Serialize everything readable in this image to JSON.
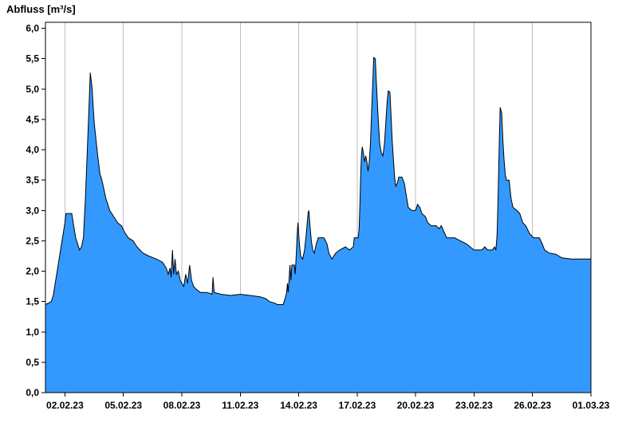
{
  "chart_data": {
    "type": "area",
    "title": "Abfluss [m³/s]",
    "ylabel": "Abfluss [m³/s]",
    "xlabel": "",
    "legend_position": "none",
    "grid": "vertical-only",
    "x_axis": {
      "tick_labels": [
        "02.02.23",
        "05.02.23",
        "08.02.23",
        "11.02.23",
        "14.02.23",
        "17.02.23",
        "20.02.23",
        "23.02.23",
        "26.02.23",
        "01.03.23"
      ],
      "tick_days": [
        1,
        4,
        7,
        10,
        13,
        16,
        19,
        22,
        25,
        28
      ],
      "domain_days": [
        0,
        28
      ],
      "domain_note": "day 0 = 01.02.23, day 28 = 01.03.23"
    },
    "y_axis": {
      "tick_labels": [
        "0,0",
        "0,5",
        "1,0",
        "1,5",
        "2,0",
        "2,5",
        "3,0",
        "3,5",
        "4,0",
        "4,5",
        "5,0",
        "5,5",
        "6,0"
      ],
      "tick_values": [
        0,
        0.5,
        1,
        1.5,
        2,
        2.5,
        3,
        3.5,
        4,
        4.5,
        5,
        5.5,
        6
      ],
      "ylim": [
        0,
        6.1
      ]
    },
    "style": {
      "fill_color": "#3399FF",
      "line_color": "#000000",
      "grid_color": "#BEBEBE",
      "frame_color": "#000000",
      "background": "#FFFFFF",
      "text_color": "#000000"
    },
    "series": [
      {
        "name": "Abfluss",
        "unit": "m³/s",
        "points": [
          [
            0.0,
            1.45
          ],
          [
            0.3,
            1.5
          ],
          [
            0.4,
            1.6
          ],
          [
            0.5,
            1.8
          ],
          [
            0.6,
            2.0
          ],
          [
            0.7,
            2.2
          ],
          [
            0.8,
            2.4
          ],
          [
            0.9,
            2.6
          ],
          [
            1.0,
            2.8
          ],
          [
            1.05,
            2.95
          ],
          [
            1.35,
            2.95
          ],
          [
            1.45,
            2.75
          ],
          [
            1.55,
            2.55
          ],
          [
            1.65,
            2.45
          ],
          [
            1.75,
            2.35
          ],
          [
            1.85,
            2.4
          ],
          [
            1.95,
            2.55
          ],
          [
            2.0,
            2.9
          ],
          [
            2.05,
            3.2
          ],
          [
            2.1,
            3.6
          ],
          [
            2.15,
            4.0
          ],
          [
            2.2,
            4.4
          ],
          [
            2.25,
            4.85
          ],
          [
            2.3,
            5.27
          ],
          [
            2.4,
            5.0
          ],
          [
            2.45,
            4.7
          ],
          [
            2.5,
            4.45
          ],
          [
            2.6,
            4.15
          ],
          [
            2.7,
            3.85
          ],
          [
            2.8,
            3.6
          ],
          [
            2.9,
            3.5
          ],
          [
            3.0,
            3.35
          ],
          [
            3.1,
            3.2
          ],
          [
            3.2,
            3.1
          ],
          [
            3.3,
            3.0
          ],
          [
            3.5,
            2.9
          ],
          [
            3.7,
            2.8
          ],
          [
            3.9,
            2.75
          ],
          [
            4.05,
            2.65
          ],
          [
            4.25,
            2.55
          ],
          [
            4.5,
            2.5
          ],
          [
            4.7,
            2.4
          ],
          [
            5.0,
            2.3
          ],
          [
            5.3,
            2.25
          ],
          [
            5.7,
            2.2
          ],
          [
            6.0,
            2.15
          ],
          [
            6.2,
            2.05
          ],
          [
            6.3,
            1.95
          ],
          [
            6.4,
            2.05
          ],
          [
            6.45,
            1.9
          ],
          [
            6.52,
            2.35
          ],
          [
            6.58,
            1.95
          ],
          [
            6.65,
            2.2
          ],
          [
            6.72,
            1.95
          ],
          [
            6.82,
            2.0
          ],
          [
            6.92,
            1.85
          ],
          [
            7.0,
            1.8
          ],
          [
            7.1,
            1.75
          ],
          [
            7.2,
            1.95
          ],
          [
            7.3,
            1.8
          ],
          [
            7.4,
            2.1
          ],
          [
            7.5,
            1.85
          ],
          [
            7.6,
            1.75
          ],
          [
            7.75,
            1.7
          ],
          [
            7.95,
            1.65
          ],
          [
            8.3,
            1.65
          ],
          [
            8.55,
            1.62
          ],
          [
            8.6,
            1.9
          ],
          [
            8.66,
            1.65
          ],
          [
            9.0,
            1.62
          ],
          [
            9.5,
            1.6
          ],
          [
            10.0,
            1.62
          ],
          [
            10.5,
            1.6
          ],
          [
            11.0,
            1.58
          ],
          [
            11.3,
            1.55
          ],
          [
            11.5,
            1.5
          ],
          [
            11.8,
            1.47
          ],
          [
            11.9,
            1.45
          ],
          [
            12.2,
            1.45
          ],
          [
            12.3,
            1.55
          ],
          [
            12.38,
            1.65
          ],
          [
            12.42,
            1.8
          ],
          [
            12.46,
            1.65
          ],
          [
            12.55,
            2.1
          ],
          [
            12.6,
            1.85
          ],
          [
            12.65,
            2.1
          ],
          [
            12.78,
            2.1
          ],
          [
            12.82,
            1.95
          ],
          [
            12.88,
            2.3
          ],
          [
            12.92,
            2.6
          ],
          [
            12.96,
            2.8
          ],
          [
            13.0,
            2.6
          ],
          [
            13.05,
            2.4
          ],
          [
            13.1,
            2.25
          ],
          [
            13.2,
            2.2
          ],
          [
            13.3,
            2.35
          ],
          [
            13.4,
            2.65
          ],
          [
            13.48,
            2.95
          ],
          [
            13.52,
            3.0
          ],
          [
            13.58,
            2.75
          ],
          [
            13.65,
            2.5
          ],
          [
            13.72,
            2.35
          ],
          [
            13.8,
            2.3
          ],
          [
            13.9,
            2.45
          ],
          [
            14.0,
            2.55
          ],
          [
            14.3,
            2.55
          ],
          [
            14.45,
            2.45
          ],
          [
            14.55,
            2.3
          ],
          [
            14.7,
            2.2
          ],
          [
            14.9,
            2.3
          ],
          [
            15.1,
            2.35
          ],
          [
            15.4,
            2.4
          ],
          [
            15.6,
            2.35
          ],
          [
            15.8,
            2.4
          ],
          [
            15.85,
            2.55
          ],
          [
            16.05,
            2.55
          ],
          [
            16.1,
            2.7
          ],
          [
            16.14,
            3.1
          ],
          [
            16.18,
            3.6
          ],
          [
            16.22,
            3.9
          ],
          [
            16.26,
            4.05
          ],
          [
            16.32,
            3.95
          ],
          [
            16.38,
            3.8
          ],
          [
            16.44,
            3.9
          ],
          [
            16.5,
            3.8
          ],
          [
            16.56,
            3.65
          ],
          [
            16.62,
            3.8
          ],
          [
            16.68,
            4.1
          ],
          [
            16.74,
            4.6
          ],
          [
            16.8,
            5.1
          ],
          [
            16.85,
            5.52
          ],
          [
            16.93,
            5.5
          ],
          [
            16.98,
            5.15
          ],
          [
            17.04,
            4.75
          ],
          [
            17.1,
            4.4
          ],
          [
            17.16,
            4.1
          ],
          [
            17.24,
            3.95
          ],
          [
            17.32,
            3.9
          ],
          [
            17.4,
            4.1
          ],
          [
            17.48,
            4.5
          ],
          [
            17.54,
            4.8
          ],
          [
            17.6,
            4.97
          ],
          [
            17.68,
            4.95
          ],
          [
            17.74,
            4.55
          ],
          [
            17.8,
            4.15
          ],
          [
            17.86,
            3.85
          ],
          [
            17.92,
            3.55
          ],
          [
            17.98,
            3.4
          ],
          [
            18.06,
            3.45
          ],
          [
            18.14,
            3.55
          ],
          [
            18.3,
            3.55
          ],
          [
            18.42,
            3.45
          ],
          [
            18.52,
            3.25
          ],
          [
            18.62,
            3.05
          ],
          [
            18.8,
            3.0
          ],
          [
            19.0,
            3.0
          ],
          [
            19.1,
            3.1
          ],
          [
            19.22,
            3.05
          ],
          [
            19.32,
            2.95
          ],
          [
            19.5,
            2.9
          ],
          [
            19.62,
            2.8
          ],
          [
            19.8,
            2.75
          ],
          [
            20.05,
            2.75
          ],
          [
            20.2,
            2.7
          ],
          [
            20.32,
            2.75
          ],
          [
            20.45,
            2.65
          ],
          [
            20.6,
            2.55
          ],
          [
            21.0,
            2.55
          ],
          [
            21.3,
            2.5
          ],
          [
            21.6,
            2.45
          ],
          [
            21.8,
            2.4
          ],
          [
            22.0,
            2.35
          ],
          [
            22.4,
            2.35
          ],
          [
            22.55,
            2.4
          ],
          [
            22.7,
            2.35
          ],
          [
            22.95,
            2.35
          ],
          [
            23.05,
            2.4
          ],
          [
            23.12,
            2.35
          ],
          [
            23.18,
            2.6
          ],
          [
            23.24,
            3.3
          ],
          [
            23.3,
            4.2
          ],
          [
            23.34,
            4.7
          ],
          [
            23.42,
            4.6
          ],
          [
            23.48,
            4.15
          ],
          [
            23.54,
            3.85
          ],
          [
            23.6,
            3.6
          ],
          [
            23.66,
            3.5
          ],
          [
            23.8,
            3.5
          ],
          [
            23.9,
            3.2
          ],
          [
            24.0,
            3.05
          ],
          [
            24.2,
            3.0
          ],
          [
            24.35,
            2.95
          ],
          [
            24.5,
            2.8
          ],
          [
            24.65,
            2.75
          ],
          [
            24.85,
            2.62
          ],
          [
            25.05,
            2.55
          ],
          [
            25.35,
            2.55
          ],
          [
            25.5,
            2.45
          ],
          [
            25.62,
            2.35
          ],
          [
            25.85,
            2.3
          ],
          [
            26.2,
            2.28
          ],
          [
            26.5,
            2.22
          ],
          [
            27.0,
            2.2
          ],
          [
            27.5,
            2.2
          ],
          [
            28.0,
            2.2
          ]
        ]
      }
    ]
  }
}
